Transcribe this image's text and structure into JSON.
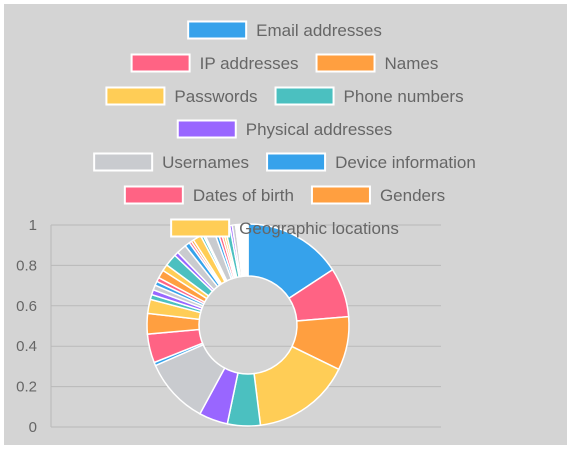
{
  "colors": {
    "background": "#d4d4d4",
    "grid": "#b9b9b9",
    "text": "#666666",
    "slice_border": "#ffffff"
  },
  "chart_data": {
    "type": "doughnut",
    "legend_position": "top",
    "grid": true,
    "ylim": [
      0,
      1
    ],
    "y_ticks": [
      "0",
      "0.2",
      "0.4",
      "0.6",
      "0.8",
      "1"
    ],
    "legend": [
      {
        "label": "Email addresses",
        "color": "#36a2eb"
      },
      {
        "label": "IP addresses",
        "color": "#ff6384"
      },
      {
        "label": "Names",
        "color": "#ff9f40"
      },
      {
        "label": "Passwords",
        "color": "#ffcd56"
      },
      {
        "label": "Phone numbers",
        "color": "#4bc0c0"
      },
      {
        "label": "Physical addresses",
        "color": "#9966ff"
      },
      {
        "label": "Usernames",
        "color": "#c9cbcf"
      },
      {
        "label": "Device information",
        "color": "#36a2eb"
      },
      {
        "label": "Dates of birth",
        "color": "#ff6384"
      },
      {
        "label": "Genders",
        "color": "#ff9f40"
      },
      {
        "label": "Geographic locations",
        "color": "#ffcd56"
      }
    ],
    "slices": [
      {
        "value": 12.0,
        "color": "#36a2eb"
      },
      {
        "value": 6.0,
        "color": "#ff6384"
      },
      {
        "value": 6.5,
        "color": "#ff9f40"
      },
      {
        "value": 12.0,
        "color": "#ffcd56"
      },
      {
        "value": 4.0,
        "color": "#4bc0c0"
      },
      {
        "value": 3.5,
        "color": "#9966ff"
      },
      {
        "value": 8.0,
        "color": "#c9cbcf"
      },
      {
        "value": 0.4,
        "color": "#36a2eb"
      },
      {
        "value": 3.5,
        "color": "#ff6384"
      },
      {
        "value": 2.5,
        "color": "#ff9f40"
      },
      {
        "value": 1.7,
        "color": "#ffcd56"
      },
      {
        "value": 0.6,
        "color": "#4bc0c0"
      },
      {
        "value": 0.6,
        "color": "#9966ff"
      },
      {
        "value": 0.6,
        "color": "#c9cbcf"
      },
      {
        "value": 0.5,
        "color": "#36a2eb"
      },
      {
        "value": 0.5,
        "color": "#ff6384"
      },
      {
        "value": 1.0,
        "color": "#ff9f40"
      },
      {
        "value": 0.8,
        "color": "#ffcd56"
      },
      {
        "value": 1.5,
        "color": "#4bc0c0"
      },
      {
        "value": 0.5,
        "color": "#9966ff"
      },
      {
        "value": 1.2,
        "color": "#c9cbcf"
      },
      {
        "value": 0.6,
        "color": "#36a2eb"
      },
      {
        "value": 0.3,
        "color": "#ff6384"
      },
      {
        "value": 0.3,
        "color": "#ff9f40"
      },
      {
        "value": 1.0,
        "color": "#ffcd56"
      },
      {
        "value": 0.3,
        "color": "#4bc0c0"
      },
      {
        "value": 0.2,
        "color": "#9966ff"
      },
      {
        "value": 1.2,
        "color": "#c9cbcf"
      },
      {
        "value": 0.4,
        "color": "#36a2eb"
      },
      {
        "value": 0.4,
        "color": "#ff6384"
      },
      {
        "value": 0.3,
        "color": "#ff9f40"
      },
      {
        "value": 0.3,
        "color": "#ffcd56"
      },
      {
        "value": 0.6,
        "color": "#4bc0c0"
      },
      {
        "value": 0.3,
        "color": "#9966ff"
      },
      {
        "value": 0.4,
        "color": "#c9cbcf"
      },
      {
        "value": 1.5,
        "color": "#ffffff"
      }
    ]
  }
}
